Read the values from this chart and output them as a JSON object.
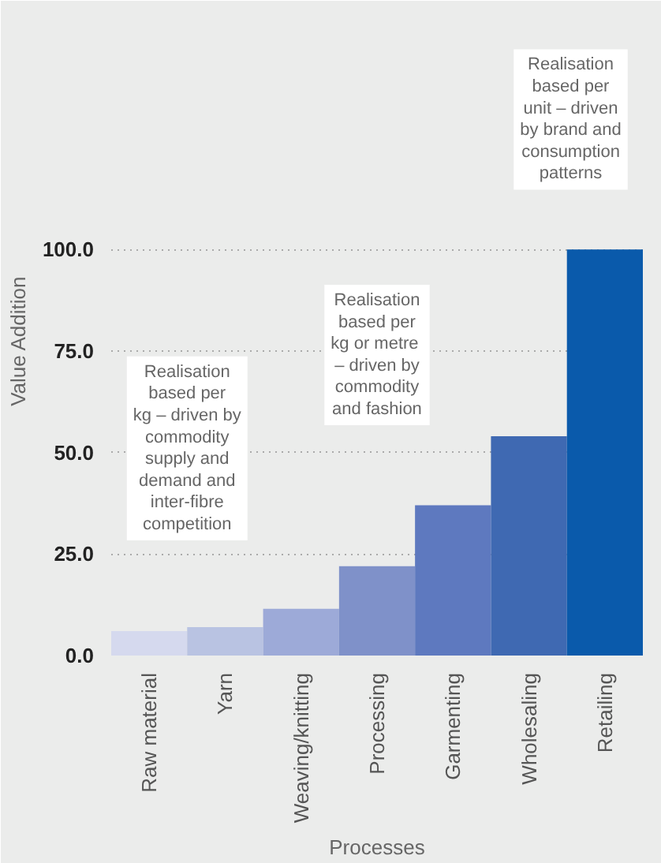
{
  "chart_data": {
    "type": "bar",
    "xlabel": "Processes",
    "ylabel": "Value Addition",
    "categories": [
      "Raw material",
      "Yarn",
      "Weaving/knitting",
      "Processing",
      "Garmenting",
      "Wholesaling",
      "Retailing"
    ],
    "values": [
      6,
      7,
      11.5,
      22,
      37,
      54,
      100
    ],
    "colors": [
      "#d5d9ee",
      "#b9c3e2",
      "#9daad8",
      "#7f91c9",
      "#5e79bf",
      "#3f69b2",
      "#0a5aab"
    ],
    "ylim": [
      0,
      155
    ],
    "yticks": [
      {
        "value": 0,
        "label": "0.0"
      },
      {
        "value": 25,
        "label": "25.0"
      },
      {
        "value": 50,
        "label": "50.0"
      },
      {
        "value": 75,
        "label": "75.0"
      },
      {
        "value": 100,
        "label": "100.0"
      }
    ],
    "grid": "y",
    "annotations": [
      "Realisation\nbased per\nkg – driven by\ncommodity\nsupply and\ndemand and\ninter-fibre\ncompetition",
      "Realisation\nbased per\nkg  or metre\n– driven by\ncommodity\nand fashion",
      "Realisation\nbased per\nunit – driven\nby brand and\nconsumption\npatterns"
    ]
  }
}
